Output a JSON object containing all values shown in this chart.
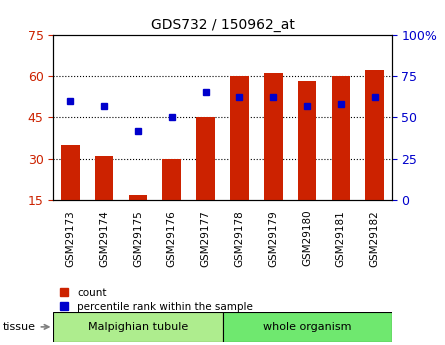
{
  "title": "GDS732 / 150962_at",
  "samples": [
    "GSM29173",
    "GSM29174",
    "GSM29175",
    "GSM29176",
    "GSM29177",
    "GSM29178",
    "GSM29179",
    "GSM29180",
    "GSM29181",
    "GSM29182"
  ],
  "counts": [
    35,
    31,
    17,
    30,
    45,
    60,
    61,
    58,
    60,
    62
  ],
  "percentiles": [
    60,
    57,
    42,
    50,
    65,
    62,
    62,
    57,
    58,
    62
  ],
  "tissue_groups": [
    {
      "label": "Malpighian tubule",
      "start": 0,
      "end": 5,
      "color": "#aeed8e"
    },
    {
      "label": "whole organism",
      "start": 5,
      "end": 10,
      "color": "#6fe86f"
    }
  ],
  "ylim_left": [
    15,
    75
  ],
  "ylim_right": [
    0,
    100
  ],
  "yticks_left": [
    15,
    30,
    45,
    60,
    75
  ],
  "yticks_right": [
    0,
    25,
    50,
    75,
    100
  ],
  "bar_color": "#cc2200",
  "dot_color": "#0000cc",
  "bar_bottom": 15,
  "grid_color": "#000000",
  "bg_color": "#ffffff",
  "tick_label_color_left": "#cc2200",
  "tick_label_color_right": "#0000cc",
  "legend_count_label": "count",
  "legend_pct_label": "percentile rank within the sample",
  "tissue_label": "tissue",
  "bar_width": 0.55
}
